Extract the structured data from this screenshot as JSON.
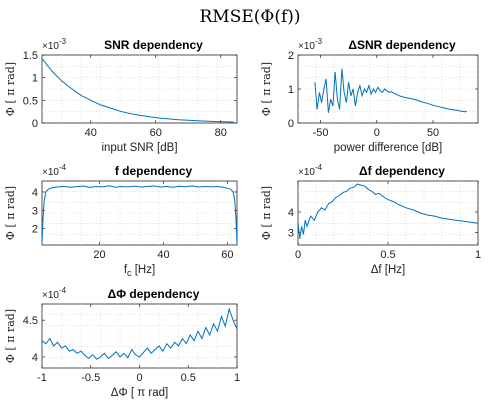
{
  "figure_title": "RMSE(Φ(f))",
  "chart_data": [
    {
      "type": "line",
      "title": "SNR dependency",
      "exponent_label": "×10^-3",
      "xlabel": "input SNR [dB]",
      "ylabel": "Φ [ π rad]",
      "xlim": [
        25,
        85
      ],
      "ylim": [
        0,
        1.5
      ],
      "xticks": [
        40,
        60,
        80
      ],
      "yticks": [
        0,
        0.5,
        1,
        1.5
      ],
      "xtick_labels": [
        "40",
        "60",
        "80"
      ],
      "ytick_labels": [
        "0",
        "0.5",
        "1",
        "1.5"
      ],
      "grid": true,
      "series": [
        {
          "x": [
            25,
            28,
            31,
            34,
            37,
            40,
            43,
            46,
            49,
            52,
            55,
            58,
            61,
            64,
            67,
            70,
            73,
            76,
            79,
            82,
            84
          ],
          "y": [
            1.42,
            1.15,
            0.93,
            0.76,
            0.61,
            0.5,
            0.4,
            0.33,
            0.26,
            0.21,
            0.17,
            0.14,
            0.11,
            0.09,
            0.07,
            0.06,
            0.05,
            0.04,
            0.03,
            0.025,
            0.02
          ]
        }
      ]
    },
    {
      "type": "line",
      "title": "ΔSNR dependency",
      "exponent_label": "×10^-3",
      "xlabel": "power difference [dB]",
      "ylabel": "Φ [ π rad]",
      "xlim": [
        -70,
        90
      ],
      "ylim": [
        0,
        2
      ],
      "xticks": [
        -50,
        0,
        50
      ],
      "yticks": [
        0,
        1,
        2
      ],
      "xtick_labels": [
        "-50",
        "0",
        "50"
      ],
      "ytick_labels": [
        "0",
        "1",
        "2"
      ],
      "grid": true,
      "series": [
        {
          "x": [
            -55,
            -53,
            -51,
            -49,
            -47,
            -45,
            -43,
            -41,
            -39,
            -37,
            -35,
            -33,
            -31,
            -29,
            -27,
            -25,
            -23,
            -21,
            -19,
            -17,
            -15,
            -13,
            -11,
            -9,
            -7,
            -5,
            -3,
            -1,
            1,
            3,
            5,
            7,
            9,
            11,
            13,
            15,
            20,
            25,
            30,
            35,
            40,
            45,
            50,
            55,
            60,
            65,
            70,
            75,
            78,
            80
          ],
          "y": [
            1.2,
            0.4,
            0.9,
            0.6,
            1.0,
            1.3,
            0.3,
            0.7,
            0.5,
            1.5,
            0.7,
            0.4,
            1.6,
            0.9,
            0.6,
            1.2,
            0.8,
            1.0,
            0.5,
            0.9,
            1.1,
            0.8,
            1.0,
            0.9,
            1.1,
            0.85,
            1.0,
            0.9,
            1.05,
            0.95,
            0.9,
            1.0,
            0.95,
            0.9,
            0.92,
            0.88,
            0.8,
            0.75,
            0.72,
            0.68,
            0.62,
            0.58,
            0.52,
            0.48,
            0.44,
            0.4,
            0.38,
            0.35,
            0.33,
            0.35
          ]
        }
      ]
    },
    {
      "type": "line",
      "title": "f dependency",
      "exponent_label": "×10^-4",
      "xlabel": "f_c [Hz]",
      "ylabel": "Φ [ π rad]",
      "xlim": [
        2,
        63
      ],
      "ylim": [
        1.1,
        4.6
      ],
      "xticks": [
        20,
        40,
        60
      ],
      "yticks": [
        2,
        3,
        4
      ],
      "xtick_labels": [
        "20",
        "40",
        "60"
      ],
      "ytick_labels": [
        "2",
        "3",
        "4"
      ],
      "grid": true,
      "series": [
        {
          "x": [
            2,
            2.3,
            2.7,
            3.2,
            4,
            5,
            7,
            9,
            11,
            13,
            15,
            17,
            19,
            21,
            23,
            25,
            27,
            29,
            31,
            33,
            35,
            37,
            39,
            41,
            43,
            45,
            47,
            49,
            51,
            53,
            55,
            57,
            59,
            60,
            61,
            61.8,
            62.3,
            62.7,
            63
          ],
          "y": [
            1.2,
            2.5,
            3.5,
            4.0,
            4.15,
            4.22,
            4.28,
            4.3,
            4.26,
            4.3,
            4.32,
            4.25,
            4.3,
            4.28,
            4.34,
            4.26,
            4.3,
            4.28,
            4.32,
            4.27,
            4.3,
            4.33,
            4.27,
            4.3,
            4.26,
            4.31,
            4.29,
            4.33,
            4.27,
            4.3,
            4.28,
            4.3,
            4.25,
            4.2,
            4.15,
            4.0,
            3.5,
            2.5,
            1.2
          ]
        }
      ]
    },
    {
      "type": "line",
      "title": "Δf dependency",
      "exponent_label": "×10^-4",
      "xlabel": "Δf [Hz]",
      "ylabel": "Φ [ π rad]",
      "xlim": [
        0,
        1
      ],
      "ylim": [
        2.4,
        5.5
      ],
      "xticks": [
        0,
        0.5,
        1
      ],
      "yticks": [
        3,
        4
      ],
      "xtick_labels": [
        "0",
        "0.5",
        "1"
      ],
      "ytick_labels": [
        "3",
        "4"
      ],
      "grid": true,
      "series": [
        {
          "x": [
            0,
            0.01,
            0.02,
            0.03,
            0.04,
            0.05,
            0.07,
            0.09,
            0.11,
            0.13,
            0.15,
            0.17,
            0.19,
            0.21,
            0.23,
            0.25,
            0.27,
            0.29,
            0.31,
            0.33,
            0.35,
            0.37,
            0.39,
            0.41,
            0.43,
            0.45,
            0.48,
            0.5,
            0.53,
            0.56,
            0.6,
            0.64,
            0.68,
            0.72,
            0.76,
            0.8,
            0.84,
            0.88,
            0.92,
            0.96,
            1
          ],
          "y": [
            3.5,
            2.7,
            3.3,
            2.9,
            3.6,
            3.3,
            3.8,
            3.6,
            4.0,
            4.2,
            4.1,
            4.4,
            4.5,
            4.7,
            4.8,
            4.95,
            5.0,
            5.15,
            5.2,
            5.35,
            5.3,
            5.25,
            5.1,
            5.0,
            4.85,
            4.9,
            4.7,
            4.6,
            4.5,
            4.35,
            4.2,
            4.1,
            3.95,
            3.85,
            3.8,
            3.7,
            3.65,
            3.6,
            3.55,
            3.5,
            3.45
          ]
        }
      ]
    },
    {
      "type": "line",
      "title": "ΔΦ dependency",
      "exponent_label": "×10^-4",
      "xlabel": "ΔΦ [ π rad]",
      "ylabel": "Φ [ π rad]",
      "xlim": [
        -1,
        1
      ],
      "ylim": [
        3.85,
        4.72
      ],
      "xticks": [
        -1,
        -0.5,
        0,
        0.5,
        1
      ],
      "yticks": [
        4,
        4.5
      ],
      "xtick_labels": [
        "-1",
        "-0.5",
        "0",
        "0.5",
        "1"
      ],
      "ytick_labels": [
        "4",
        "4.5"
      ],
      "grid": true,
      "series": [
        {
          "x": [
            -1,
            -0.96,
            -0.92,
            -0.88,
            -0.84,
            -0.8,
            -0.76,
            -0.72,
            -0.68,
            -0.64,
            -0.6,
            -0.56,
            -0.52,
            -0.48,
            -0.44,
            -0.4,
            -0.36,
            -0.32,
            -0.28,
            -0.24,
            -0.2,
            -0.16,
            -0.12,
            -0.08,
            -0.04,
            0,
            0.04,
            0.08,
            0.12,
            0.16,
            0.2,
            0.24,
            0.28,
            0.32,
            0.36,
            0.4,
            0.44,
            0.48,
            0.52,
            0.56,
            0.6,
            0.64,
            0.68,
            0.72,
            0.76,
            0.8,
            0.84,
            0.88,
            0.92,
            0.96,
            1
          ],
          "y": [
            4.22,
            4.18,
            4.25,
            4.15,
            4.2,
            4.12,
            4.15,
            4.08,
            4.1,
            4.05,
            4.08,
            4.02,
            3.98,
            4.03,
            3.97,
            4.0,
            4.05,
            3.98,
            4.02,
            4.07,
            4.0,
            4.05,
            3.99,
            4.1,
            4.03,
            4.0,
            4.06,
            4.12,
            4.05,
            4.1,
            4.15,
            4.08,
            4.18,
            4.12,
            4.2,
            4.15,
            4.25,
            4.18,
            4.3,
            4.22,
            4.35,
            4.25,
            4.4,
            4.3,
            4.45,
            4.35,
            4.55,
            4.42,
            4.65,
            4.5,
            4.38
          ]
        }
      ]
    }
  ]
}
